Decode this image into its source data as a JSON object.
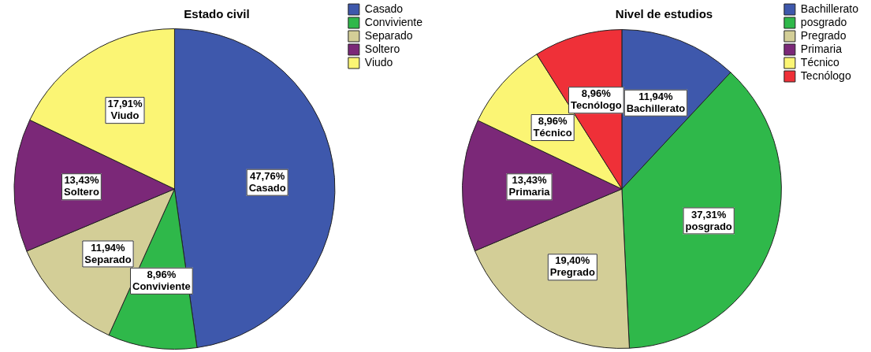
{
  "chart_data": [
    {
      "type": "pie",
      "title": "Estado civil",
      "categories": [
        "Casado",
        "Conviviente",
        "Separado",
        "Soltero",
        "Viudo"
      ],
      "values": [
        47.76,
        8.96,
        11.94,
        13.43,
        17.91
      ],
      "colors": [
        "#3e58ac",
        "#2fb84a",
        "#d3ce97",
        "#7b2878",
        "#fbf574"
      ],
      "value_labels": [
        "47,76%",
        "8,96%",
        "11,94%",
        "13,43%",
        "17,91%"
      ],
      "legend": "top right"
    },
    {
      "type": "pie",
      "title": "Nivel de estudios",
      "categories": [
        "Bachillerato",
        "posgrado",
        "Pregrado",
        "Primaria",
        "Técnico",
        "Tecnólogo"
      ],
      "values": [
        11.94,
        37.31,
        19.4,
        13.43,
        8.96,
        8.96
      ],
      "colors": [
        "#3e58ac",
        "#2fb84a",
        "#d3ce97",
        "#7b2878",
        "#fbf574",
        "#ef3038"
      ],
      "value_labels": [
        "11,94%",
        "37,31%",
        "19,40%",
        "13,43%",
        "8,96%",
        "8,96%"
      ],
      "legend": "top right"
    }
  ]
}
